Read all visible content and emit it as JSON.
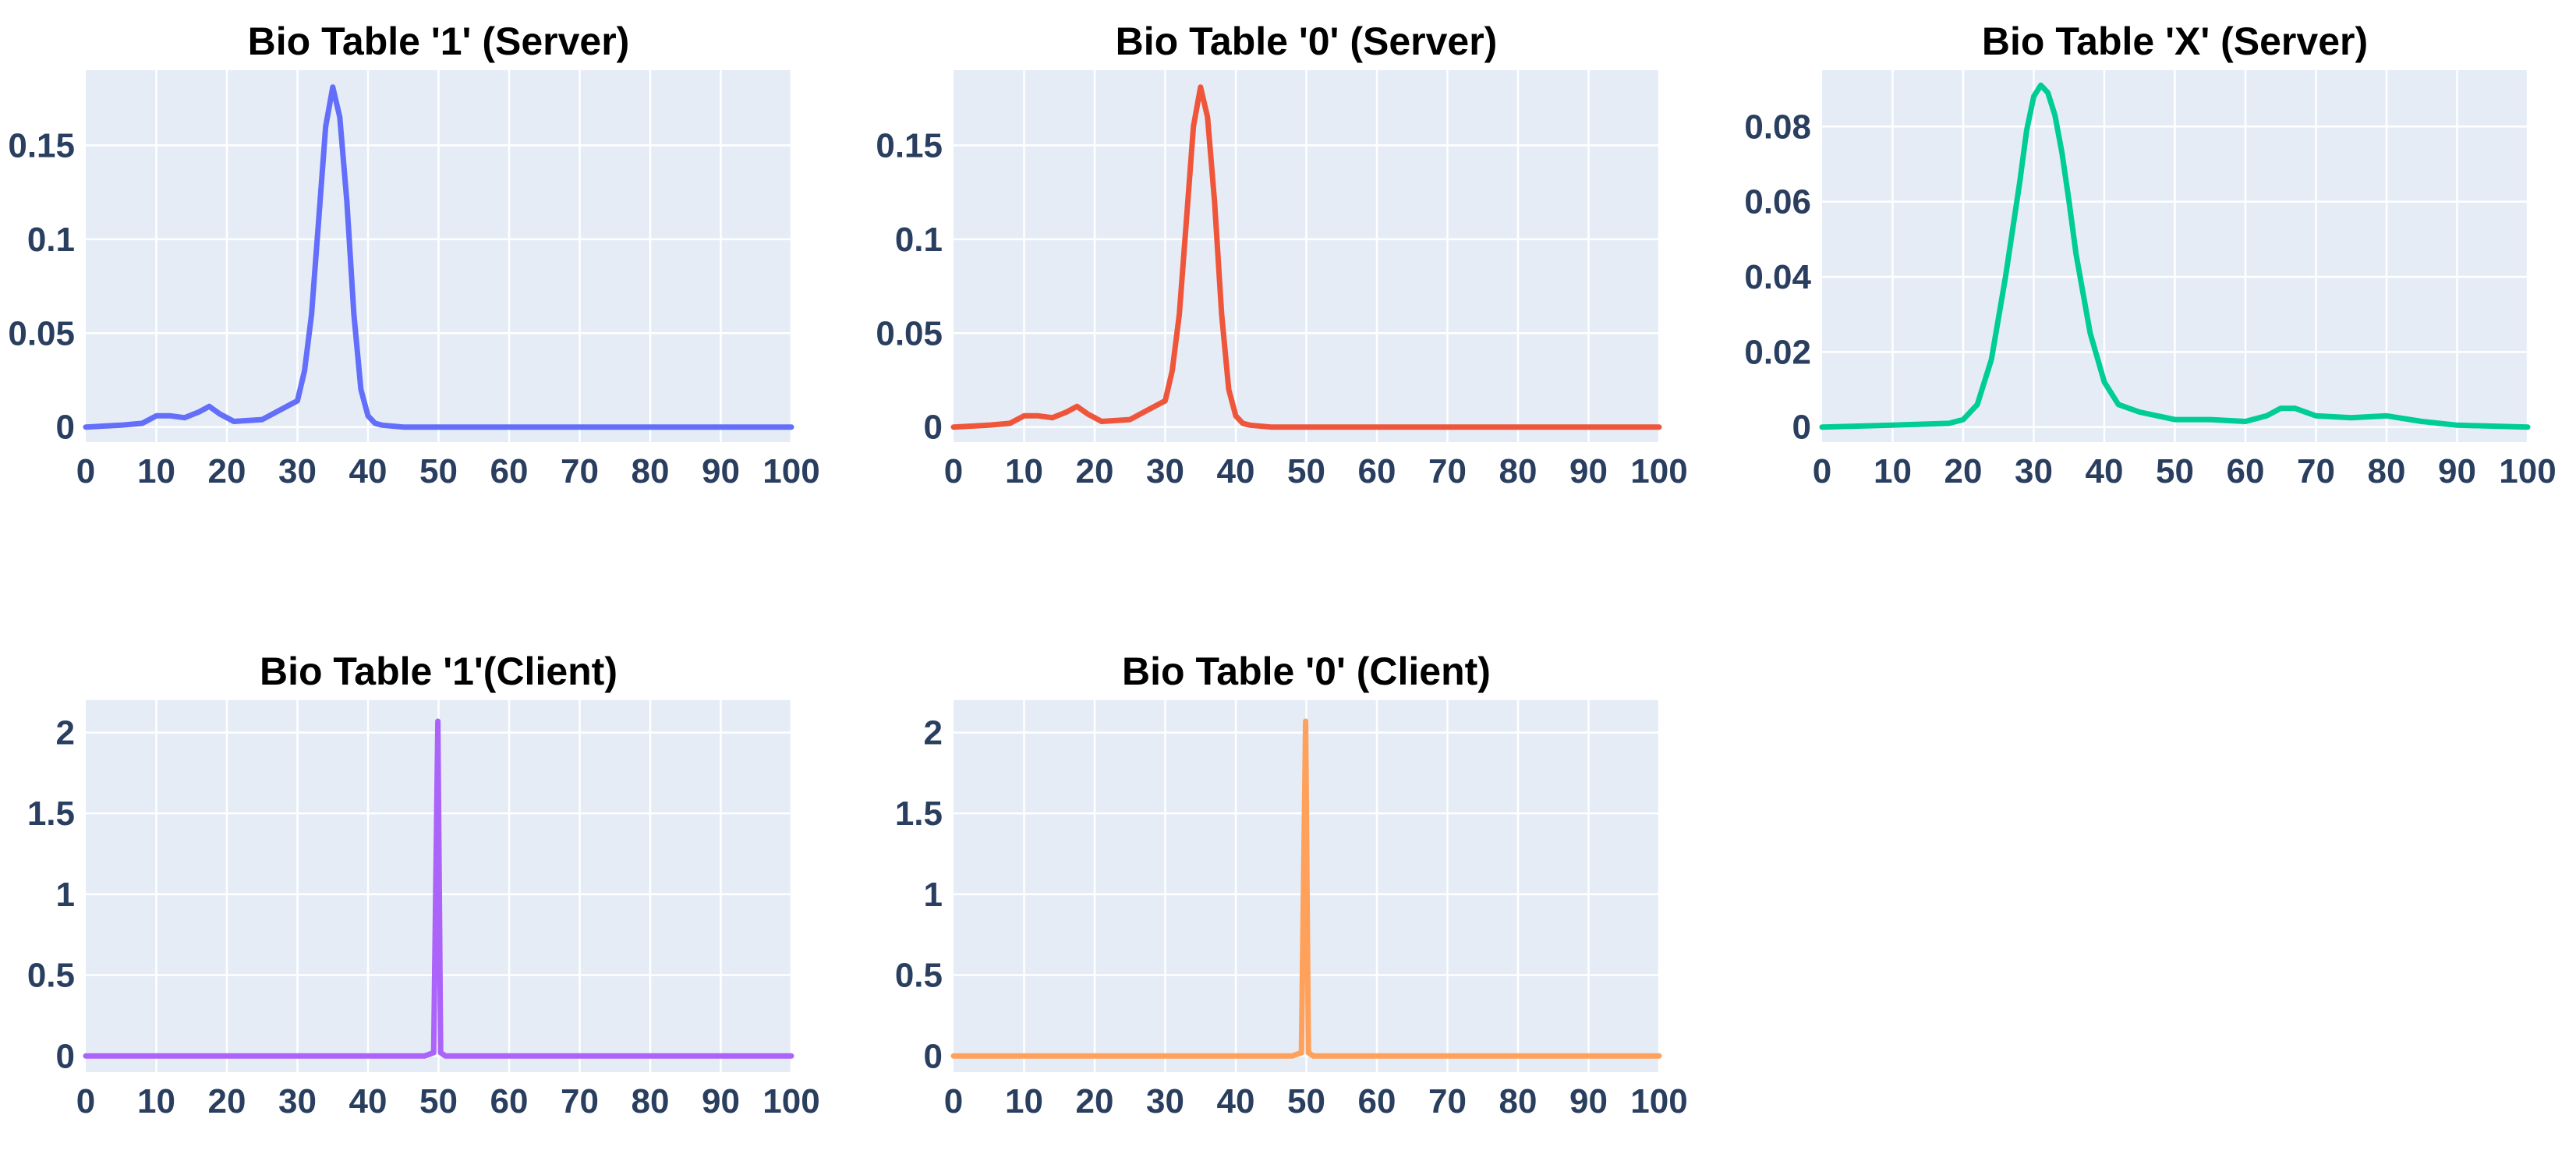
{
  "chart_data": [
    {
      "type": "line",
      "title": "Bio Table '1' (Server)",
      "xlabel": "",
      "ylabel": "",
      "xlim": [
        0,
        100
      ],
      "ylim": [
        -0.008,
        0.19
      ],
      "x_ticks": [
        0,
        10,
        20,
        30,
        40,
        50,
        60,
        70,
        80,
        90,
        100
      ],
      "y_ticks": [
        0,
        0.05,
        0.1,
        0.15
      ],
      "y_tick_labels": [
        "0",
        "0.05",
        "0.1",
        "0.15"
      ],
      "grid": true,
      "color": "#636efa",
      "series": [
        {
          "name": "Bio Table '1' (Server)",
          "x": [
            0,
            5,
            8,
            10,
            12,
            14,
            16,
            17.5,
            19,
            21,
            25,
            28,
            30,
            31,
            32,
            33,
            34,
            35,
            36,
            37,
            38,
            39,
            40,
            41,
            42,
            45,
            50,
            60,
            70,
            80,
            90,
            100
          ],
          "y": [
            0,
            0.001,
            0.002,
            0.006,
            0.006,
            0.005,
            0.008,
            0.011,
            0.007,
            0.003,
            0.004,
            0.01,
            0.014,
            0.03,
            0.06,
            0.11,
            0.16,
            0.181,
            0.165,
            0.12,
            0.06,
            0.02,
            0.006,
            0.002,
            0.001,
            0,
            0,
            0,
            0,
            0,
            0,
            0
          ]
        }
      ]
    },
    {
      "type": "line",
      "title": "Bio Table '0' (Server)",
      "xlabel": "",
      "ylabel": "",
      "xlim": [
        0,
        100
      ],
      "ylim": [
        -0.008,
        0.19
      ],
      "x_ticks": [
        0,
        10,
        20,
        30,
        40,
        50,
        60,
        70,
        80,
        90,
        100
      ],
      "y_ticks": [
        0,
        0.05,
        0.1,
        0.15
      ],
      "y_tick_labels": [
        "0",
        "0.05",
        "0.1",
        "0.15"
      ],
      "grid": true,
      "color": "#ef553b",
      "series": [
        {
          "name": "Bio Table '0' (Server)",
          "x": [
            0,
            5,
            8,
            10,
            12,
            14,
            16,
            17.5,
            19,
            21,
            25,
            28,
            30,
            31,
            32,
            33,
            34,
            35,
            36,
            37,
            38,
            39,
            40,
            41,
            42,
            45,
            50,
            60,
            70,
            80,
            90,
            100
          ],
          "y": [
            0,
            0.001,
            0.002,
            0.006,
            0.006,
            0.005,
            0.008,
            0.011,
            0.007,
            0.003,
            0.004,
            0.01,
            0.014,
            0.03,
            0.06,
            0.11,
            0.16,
            0.181,
            0.165,
            0.12,
            0.06,
            0.02,
            0.006,
            0.002,
            0.001,
            0,
            0,
            0,
            0,
            0,
            0,
            0
          ]
        }
      ]
    },
    {
      "type": "line",
      "title": "Bio Table 'X' (Server)",
      "xlabel": "",
      "ylabel": "",
      "xlim": [
        0,
        100
      ],
      "ylim": [
        -0.004,
        0.095
      ],
      "x_ticks": [
        0,
        10,
        20,
        30,
        40,
        50,
        60,
        70,
        80,
        90,
        100
      ],
      "y_ticks": [
        0,
        0.02,
        0.04,
        0.06,
        0.08
      ],
      "y_tick_labels": [
        "0",
        "0.02",
        "0.04",
        "0.06",
        "0.08"
      ],
      "grid": true,
      "color": "#00cc96",
      "series": [
        {
          "name": "Bio Table 'X' (Server)",
          "x": [
            0,
            10,
            18,
            20,
            22,
            24,
            26,
            28,
            29,
            30,
            31,
            32,
            33,
            34,
            35,
            36,
            38,
            40,
            42,
            45,
            50,
            55,
            60,
            63,
            65,
            67,
            70,
            75,
            80,
            85,
            90,
            100
          ],
          "y": [
            0,
            0.0005,
            0.001,
            0.002,
            0.006,
            0.018,
            0.04,
            0.065,
            0.079,
            0.088,
            0.091,
            0.089,
            0.083,
            0.073,
            0.06,
            0.046,
            0.025,
            0.012,
            0.006,
            0.004,
            0.002,
            0.002,
            0.0015,
            0.003,
            0.005,
            0.005,
            0.003,
            0.0025,
            0.003,
            0.0015,
            0.0005,
            0
          ]
        }
      ]
    },
    {
      "type": "line",
      "title": "Bio Table '1'(Client)",
      "xlabel": "",
      "ylabel": "",
      "xlim": [
        0,
        100
      ],
      "ylim": [
        -0.1,
        2.2
      ],
      "x_ticks": [
        0,
        10,
        20,
        30,
        40,
        50,
        60,
        70,
        80,
        90,
        100
      ],
      "y_ticks": [
        0,
        0.5,
        1,
        1.5,
        2
      ],
      "y_tick_labels": [
        "0",
        "0.5",
        "1",
        "1.5",
        "2"
      ],
      "grid": true,
      "color": "#ab63fa",
      "series": [
        {
          "name": "Bio Table '1'(Client)",
          "x": [
            0,
            48,
            49.3,
            49.9,
            50.3,
            51,
            52,
            100
          ],
          "y": [
            0,
            0,
            0.02,
            2.07,
            0.02,
            0,
            0,
            0
          ]
        }
      ]
    },
    {
      "type": "line",
      "title": "Bio Table '0' (Client)",
      "xlabel": "",
      "ylabel": "",
      "xlim": [
        0,
        100
      ],
      "ylim": [
        -0.1,
        2.2
      ],
      "x_ticks": [
        0,
        10,
        20,
        30,
        40,
        50,
        60,
        70,
        80,
        90,
        100
      ],
      "y_ticks": [
        0,
        0.5,
        1,
        1.5,
        2
      ],
      "y_tick_labels": [
        "0",
        "0.5",
        "1",
        "1.5",
        "2"
      ],
      "grid": true,
      "color": "#ffa15a",
      "series": [
        {
          "name": "Bio Table '0' (Client)",
          "x": [
            0,
            48,
            49.3,
            49.9,
            50.3,
            51,
            52,
            100
          ],
          "y": [
            0,
            0,
            0.02,
            2.07,
            0.02,
            0,
            0,
            0
          ]
        }
      ]
    }
  ]
}
